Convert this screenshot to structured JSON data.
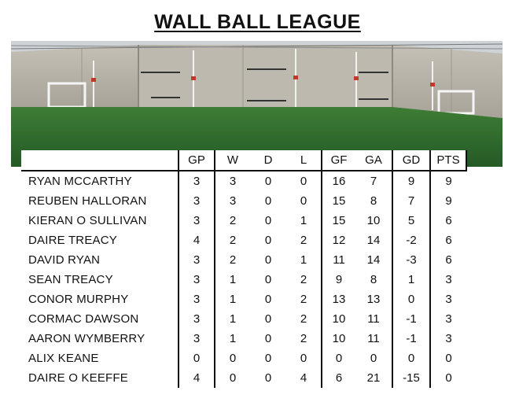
{
  "title": "WALL BALL LEAGUE",
  "photo": {
    "icon": "wall-ball-court-photo",
    "colors": {
      "sky": "#c9cfd3",
      "wall": "#b6b2a8",
      "turf": "#2f6a2e",
      "goal": "#f2f2f2",
      "marker": "#c0392b"
    }
  },
  "table": {
    "headers": [
      "GP",
      "W",
      "D",
      "L",
      "GF",
      "GA",
      "GD",
      "PTS"
    ],
    "rows": [
      {
        "name": "RYAN MCCARTHY",
        "gp": "3",
        "w": "3",
        "d": "0",
        "l": "0",
        "gf": "16",
        "ga": "7",
        "gd": "9",
        "pts": "9"
      },
      {
        "name": "REUBEN HALLORAN",
        "gp": "3",
        "w": "3",
        "d": "0",
        "l": "0",
        "gf": "15",
        "ga": "8",
        "gd": "7",
        "pts": "9"
      },
      {
        "name": "KIERAN O SULLIVAN",
        "gp": "3",
        "w": "2",
        "d": "0",
        "l": "1",
        "gf": "15",
        "ga": "10",
        "gd": "5",
        "pts": "6"
      },
      {
        "name": "DAIRE TREACY",
        "gp": "4",
        "w": "2",
        "d": "0",
        "l": "2",
        "gf": "12",
        "ga": "14",
        "gd": "-2",
        "pts": "6"
      },
      {
        "name": "DAVID RYAN",
        "gp": "3",
        "w": "2",
        "d": "0",
        "l": "1",
        "gf": "11",
        "ga": "14",
        "gd": "-3",
        "pts": "6"
      },
      {
        "name": "SEAN TREACY",
        "gp": "3",
        "w": "1",
        "d": "0",
        "l": "2",
        "gf": "9",
        "ga": "8",
        "gd": "1",
        "pts": "3"
      },
      {
        "name": "CONOR MURPHY",
        "gp": "3",
        "w": "1",
        "d": "0",
        "l": "2",
        "gf": "13",
        "ga": "13",
        "gd": "0",
        "pts": "3"
      },
      {
        "name": "CORMAC  DAWSON",
        "gp": "3",
        "w": "1",
        "d": "0",
        "l": "2",
        "gf": "10",
        "ga": "11",
        "gd": "-1",
        "pts": "3"
      },
      {
        "name": "AARON WYMBERRY",
        "gp": "3",
        "w": "1",
        "d": "0",
        "l": "2",
        "gf": "10",
        "ga": "11",
        "gd": "-1",
        "pts": "3"
      },
      {
        "name": "ALIX KEANE",
        "gp": "0",
        "w": "0",
        "d": "0",
        "l": "0",
        "gf": "0",
        "ga": "0",
        "gd": "0",
        "pts": "0"
      },
      {
        "name": "DAIRE O KEEFFE",
        "gp": "4",
        "w": "0",
        "d": "0",
        "l": "4",
        "gf": "6",
        "ga": "21",
        "gd": "-15",
        "pts": "0"
      }
    ]
  }
}
